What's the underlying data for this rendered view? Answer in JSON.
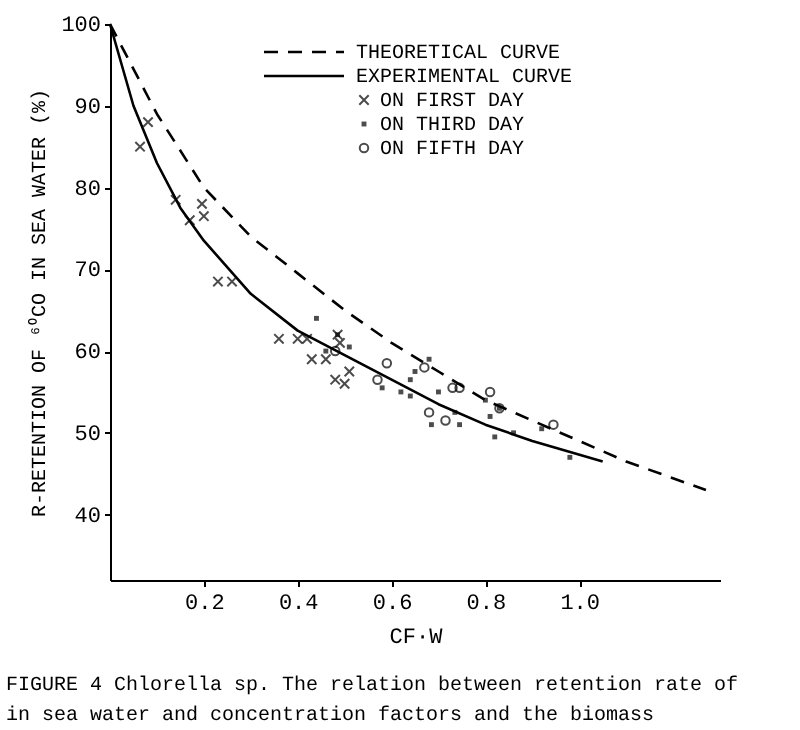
{
  "chart_data": {
    "type": "scatter",
    "xlabel": "CF·W",
    "ylabel": "R-RETENTION OF ⁶⁰CO IN SEA WATER (%)",
    "xlim": [
      0,
      1.3
    ],
    "xticks": [
      0.2,
      0.4,
      0.6,
      0.8,
      {
        "value": 1.0,
        "label": "1.0"
      }
    ],
    "ylim": [
      32,
      100
    ],
    "yticks": [
      40,
      50,
      60,
      70,
      80,
      90,
      100
    ],
    "grid": false,
    "legend": "top right",
    "annotations": [
      "FIGURE 4   Chlorella sp.  The relation between retention rate of",
      "in sea water and concentration factors and the biomass"
    ],
    "series": [
      {
        "name": "THEORETICAL CURVE",
        "type": "line",
        "line_style": "dashed",
        "color": "#000000",
        "x": [
          0,
          0.1,
          0.2,
          0.3,
          0.4,
          0.5,
          0.6,
          0.7,
          0.8,
          0.9,
          1.0,
          1.1,
          1.27
        ],
        "values": [
          100,
          89,
          80,
          74,
          69.5,
          65,
          61,
          57.5,
          54,
          51.5,
          49,
          46.5,
          43
        ]
      },
      {
        "name": "EXPERIMENTAL CURVE",
        "type": "line",
        "line_style": "solid",
        "color": "#000000",
        "x": [
          0,
          0.05,
          0.1,
          0.15,
          0.2,
          0.3,
          0.4,
          0.5,
          0.6,
          0.7,
          0.8,
          0.9,
          1.05
        ],
        "values": [
          100,
          90,
          83,
          77.5,
          73.5,
          67,
          62.5,
          59.5,
          56.5,
          53.5,
          51,
          49,
          46.5
        ]
      },
      {
        "name": "ON FIRST DAY",
        "marker": "cross",
        "color": "#000000",
        "x": [
          0.064,
          0.081,
          0.14,
          0.17,
          0.196,
          0.2,
          0.23,
          0.26,
          0.36,
          0.4,
          0.42,
          0.43,
          0.46,
          0.485,
          0.49,
          0.48,
          0.5,
          0.51
        ],
        "values": [
          85,
          88,
          78.5,
          76,
          78,
          76.5,
          68.5,
          68.5,
          61.5,
          61.5,
          61.5,
          59,
          59,
          62,
          61,
          56.5,
          56,
          57.5
        ]
      },
      {
        "name": "ON THIRD DAY",
        "marker": "square",
        "color": "#000000",
        "x": [
          0.44,
          0.485,
          0.51,
          0.46,
          0.58,
          0.62,
          0.64,
          0.64,
          0.65,
          0.68,
          0.7,
          0.685,
          0.745,
          0.735,
          0.81,
          0.82,
          0.86,
          0.92,
          0.98,
          0.83,
          0.8
        ],
        "values": [
          64,
          62,
          60.5,
          60,
          55.5,
          55,
          54.5,
          56.5,
          57.5,
          59,
          55,
          51,
          51,
          52.5,
          52,
          49.5,
          50,
          50.5,
          47,
          53,
          54
        ]
      },
      {
        "name": "ON FIFTH DAY",
        "marker": "circle",
        "color": "#000000",
        "x": [
          0.59,
          0.57,
          0.48,
          0.67,
          0.68,
          0.715,
          0.73,
          0.745,
          0.81,
          0.83,
          0.945
        ],
        "values": [
          58.5,
          56.5,
          60,
          58,
          52.5,
          51.5,
          55.5,
          55.5,
          55,
          53,
          51
        ]
      }
    ]
  }
}
